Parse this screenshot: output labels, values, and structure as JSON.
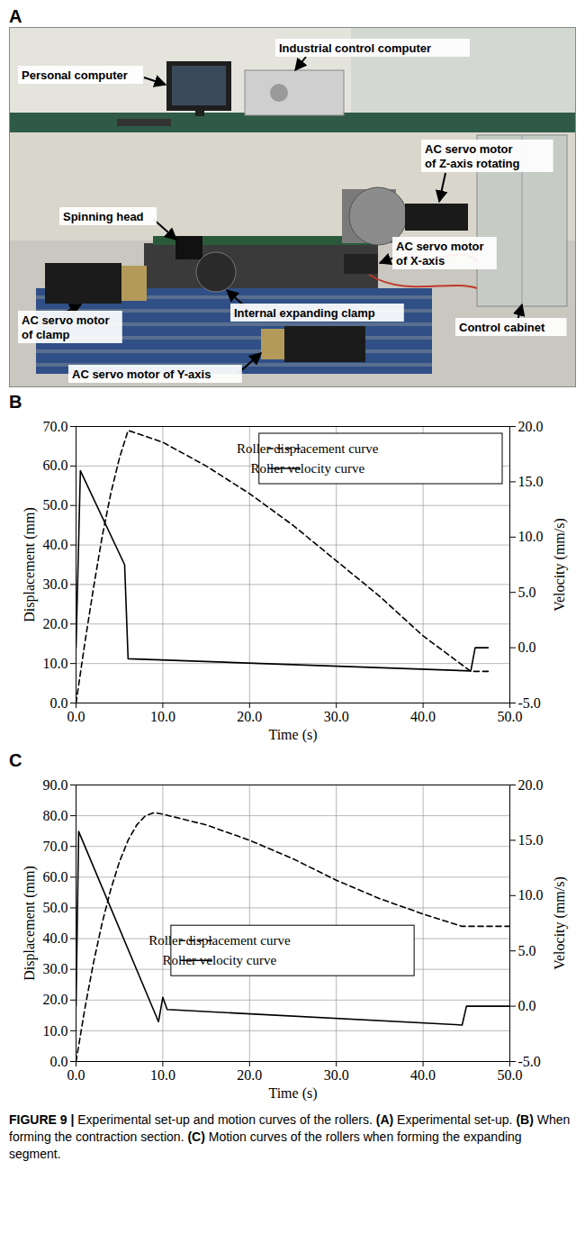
{
  "panel_a": {
    "panel": "A",
    "labels": [
      {
        "lines": [
          "Personal computer"
        ]
      },
      {
        "lines": [
          "Industrial control computer"
        ]
      },
      {
        "lines": [
          "AC servo motor",
          "of Z-axis rotating"
        ]
      },
      {
        "lines": [
          "Spinning head"
        ]
      },
      {
        "lines": [
          "AC servo motor",
          "of X-axis"
        ]
      },
      {
        "lines": [
          "Internal expanding clamp"
        ]
      },
      {
        "lines": [
          "Control cabinet"
        ]
      },
      {
        "lines": [
          "AC servo motor",
          "of clamp"
        ]
      },
      {
        "lines": [
          "AC servo motor of Y-axis"
        ]
      }
    ]
  },
  "chart_data": [
    {
      "panel": "B",
      "type": "line",
      "x_label": "Time (s)",
      "y_label": "Displacement (mm)",
      "y2_label": "Velocity (mm/s)",
      "xlim": [
        0,
        50
      ],
      "xticks": [
        {
          "value": 0,
          "label": "0.0"
        },
        {
          "value": 10,
          "label": "10.0"
        },
        {
          "value": 20,
          "label": "20.0"
        },
        {
          "value": 30,
          "label": "30.0"
        },
        {
          "value": 40,
          "label": "40.0"
        },
        {
          "value": 50,
          "label": "50.0"
        }
      ],
      "ylim": [
        0,
        70
      ],
      "yticks": [
        {
          "value": 0,
          "label": "0.0"
        },
        {
          "value": 10,
          "label": "10.0"
        },
        {
          "value": 20,
          "label": "20.0"
        },
        {
          "value": 30,
          "label": "30.0"
        },
        {
          "value": 40,
          "label": "40.0"
        },
        {
          "value": 50,
          "label": "50.0"
        },
        {
          "value": 60,
          "label": "60.0"
        },
        {
          "value": 70,
          "label": "70.0"
        }
      ],
      "y2lim": [
        -5,
        20
      ],
      "y2ticks": [
        {
          "value": -5,
          "label": "-5.0"
        },
        {
          "value": 0,
          "label": "0.0"
        },
        {
          "value": 5,
          "label": "5.0"
        },
        {
          "value": 10,
          "label": "10.0"
        },
        {
          "value": 15,
          "label": "15.0"
        },
        {
          "value": 20,
          "label": "20.0"
        }
      ],
      "grid": true,
      "legend": "upper right",
      "series": [
        {
          "name": "Roller displacement curve",
          "color": "#000000",
          "line_style": "dashed",
          "x": [
            0,
            1,
            2,
            3,
            4,
            5,
            6,
            10,
            15,
            20,
            25,
            30,
            35,
            40,
            45.5,
            47.5
          ],
          "values": [
            0,
            15,
            29,
            42,
            53,
            62,
            69,
            66,
            60,
            53,
            45,
            36,
            27,
            17,
            8,
            8
          ]
        },
        {
          "name": "Roller velocity curve",
          "color": "#000000",
          "line_style": "solid",
          "axis": "y2",
          "x": [
            0,
            0.5,
            5.6,
            6,
            45.5,
            46,
            47.5
          ],
          "values": [
            0,
            16,
            7.5,
            -1,
            -2.1,
            0,
            0
          ]
        }
      ]
    },
    {
      "panel": "C",
      "type": "line",
      "x_label": "Time (s)",
      "y_label": "Displacement (mm)",
      "y2_label": "Velocity (mm/s)",
      "xlim": [
        0,
        50
      ],
      "xticks": [
        {
          "value": 0,
          "label": "0.0"
        },
        {
          "value": 10,
          "label": "10.0"
        },
        {
          "value": 20,
          "label": "20.0"
        },
        {
          "value": 30,
          "label": "30.0"
        },
        {
          "value": 40,
          "label": "40.0"
        },
        {
          "value": 50,
          "label": "50.0"
        }
      ],
      "ylim": [
        0,
        90
      ],
      "yticks": [
        {
          "value": 0,
          "label": "0.0"
        },
        {
          "value": 10,
          "label": "10.0"
        },
        {
          "value": 20,
          "label": "20.0"
        },
        {
          "value": 30,
          "label": "30.0"
        },
        {
          "value": 40,
          "label": "40.0"
        },
        {
          "value": 50,
          "label": "50.0"
        },
        {
          "value": 60,
          "label": "60.0"
        },
        {
          "value": 70,
          "label": "70.0"
        },
        {
          "value": 80,
          "label": "80.0"
        },
        {
          "value": 90,
          "label": "90.0"
        }
      ],
      "y2lim": [
        -5,
        20
      ],
      "y2ticks": [
        {
          "value": -5,
          "label": "-5.0"
        },
        {
          "value": 0,
          "label": "0.0"
        },
        {
          "value": 5,
          "label": "5.0"
        },
        {
          "value": 10,
          "label": "10.0"
        },
        {
          "value": 15,
          "label": "15.0"
        },
        {
          "value": 20,
          "label": "20.0"
        }
      ],
      "grid": true,
      "legend": "center",
      "series": [
        {
          "name": "Roller displacement curve",
          "color": "#000000",
          "line_style": "dashed",
          "x": [
            0,
            1,
            2,
            3,
            4,
            5,
            6,
            7,
            8,
            9,
            10,
            15,
            20,
            25,
            30,
            35,
            40,
            44.5,
            50
          ],
          "values": [
            0,
            17,
            32,
            45,
            56,
            65,
            72,
            77,
            80,
            81,
            80.5,
            77,
            72,
            66,
            59,
            53,
            48,
            44,
            44
          ]
        },
        {
          "name": "Roller velocity curve",
          "color": "#000000",
          "line_style": "solid",
          "axis": "y2",
          "x": [
            0,
            0.3,
            9.5,
            10,
            10.5,
            44.5,
            45,
            50
          ],
          "values": [
            0,
            15.8,
            -1.4,
            0.8,
            -0.3,
            -1.7,
            0,
            0
          ]
        }
      ]
    }
  ],
  "caption": {
    "label": "FIGURE 9 |",
    "text": "Experimental set-up and motion curves of the rollers.",
    "parts": [
      {
        "letter": "(A)",
        "text": "Experimental set-up."
      },
      {
        "letter": "(B)",
        "text": "When forming the contraction section."
      },
      {
        "letter": "(C)",
        "text": "Motion curves of the rollers when forming the expanding segment."
      }
    ]
  }
}
